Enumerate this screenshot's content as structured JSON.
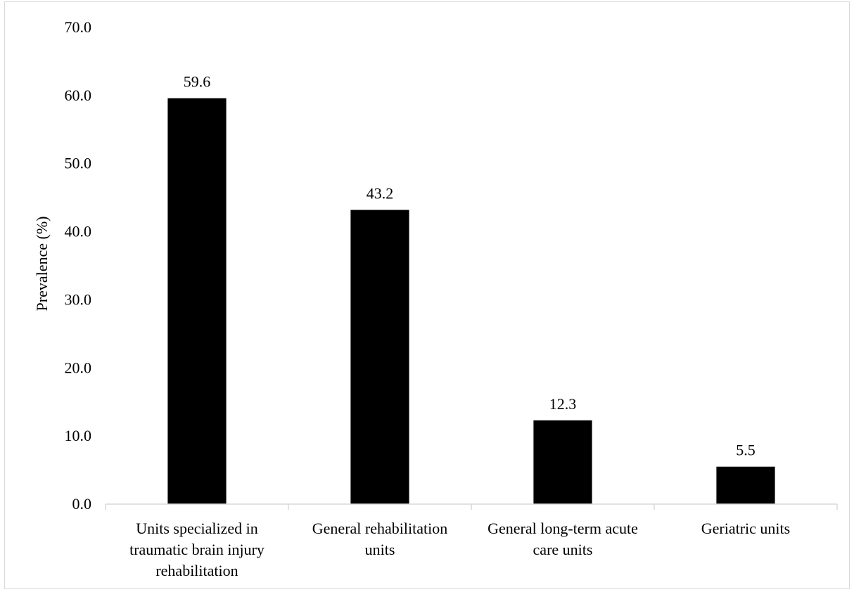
{
  "chart_data": {
    "type": "bar",
    "title": "",
    "xlabel": "",
    "ylabel": "Prevalence (%)",
    "ylim": [
      0,
      70
    ],
    "yticks": [
      "0.0",
      "10.0",
      "20.0",
      "30.0",
      "40.0",
      "50.0",
      "60.0",
      "70.0"
    ],
    "grid": false,
    "legend": "none",
    "bar_color": "#000000",
    "categories": [
      [
        "Units specialized in",
        "traumatic brain injury",
        "rehabilitation"
      ],
      [
        "General rehabilitation",
        "units"
      ],
      [
        "General long-term acute",
        "care units"
      ],
      [
        "Geriatric units"
      ]
    ],
    "values": [
      59.6,
      43.2,
      12.3,
      5.5
    ],
    "data_labels": [
      "59.6",
      "43.2",
      "12.3",
      "5.5"
    ]
  }
}
